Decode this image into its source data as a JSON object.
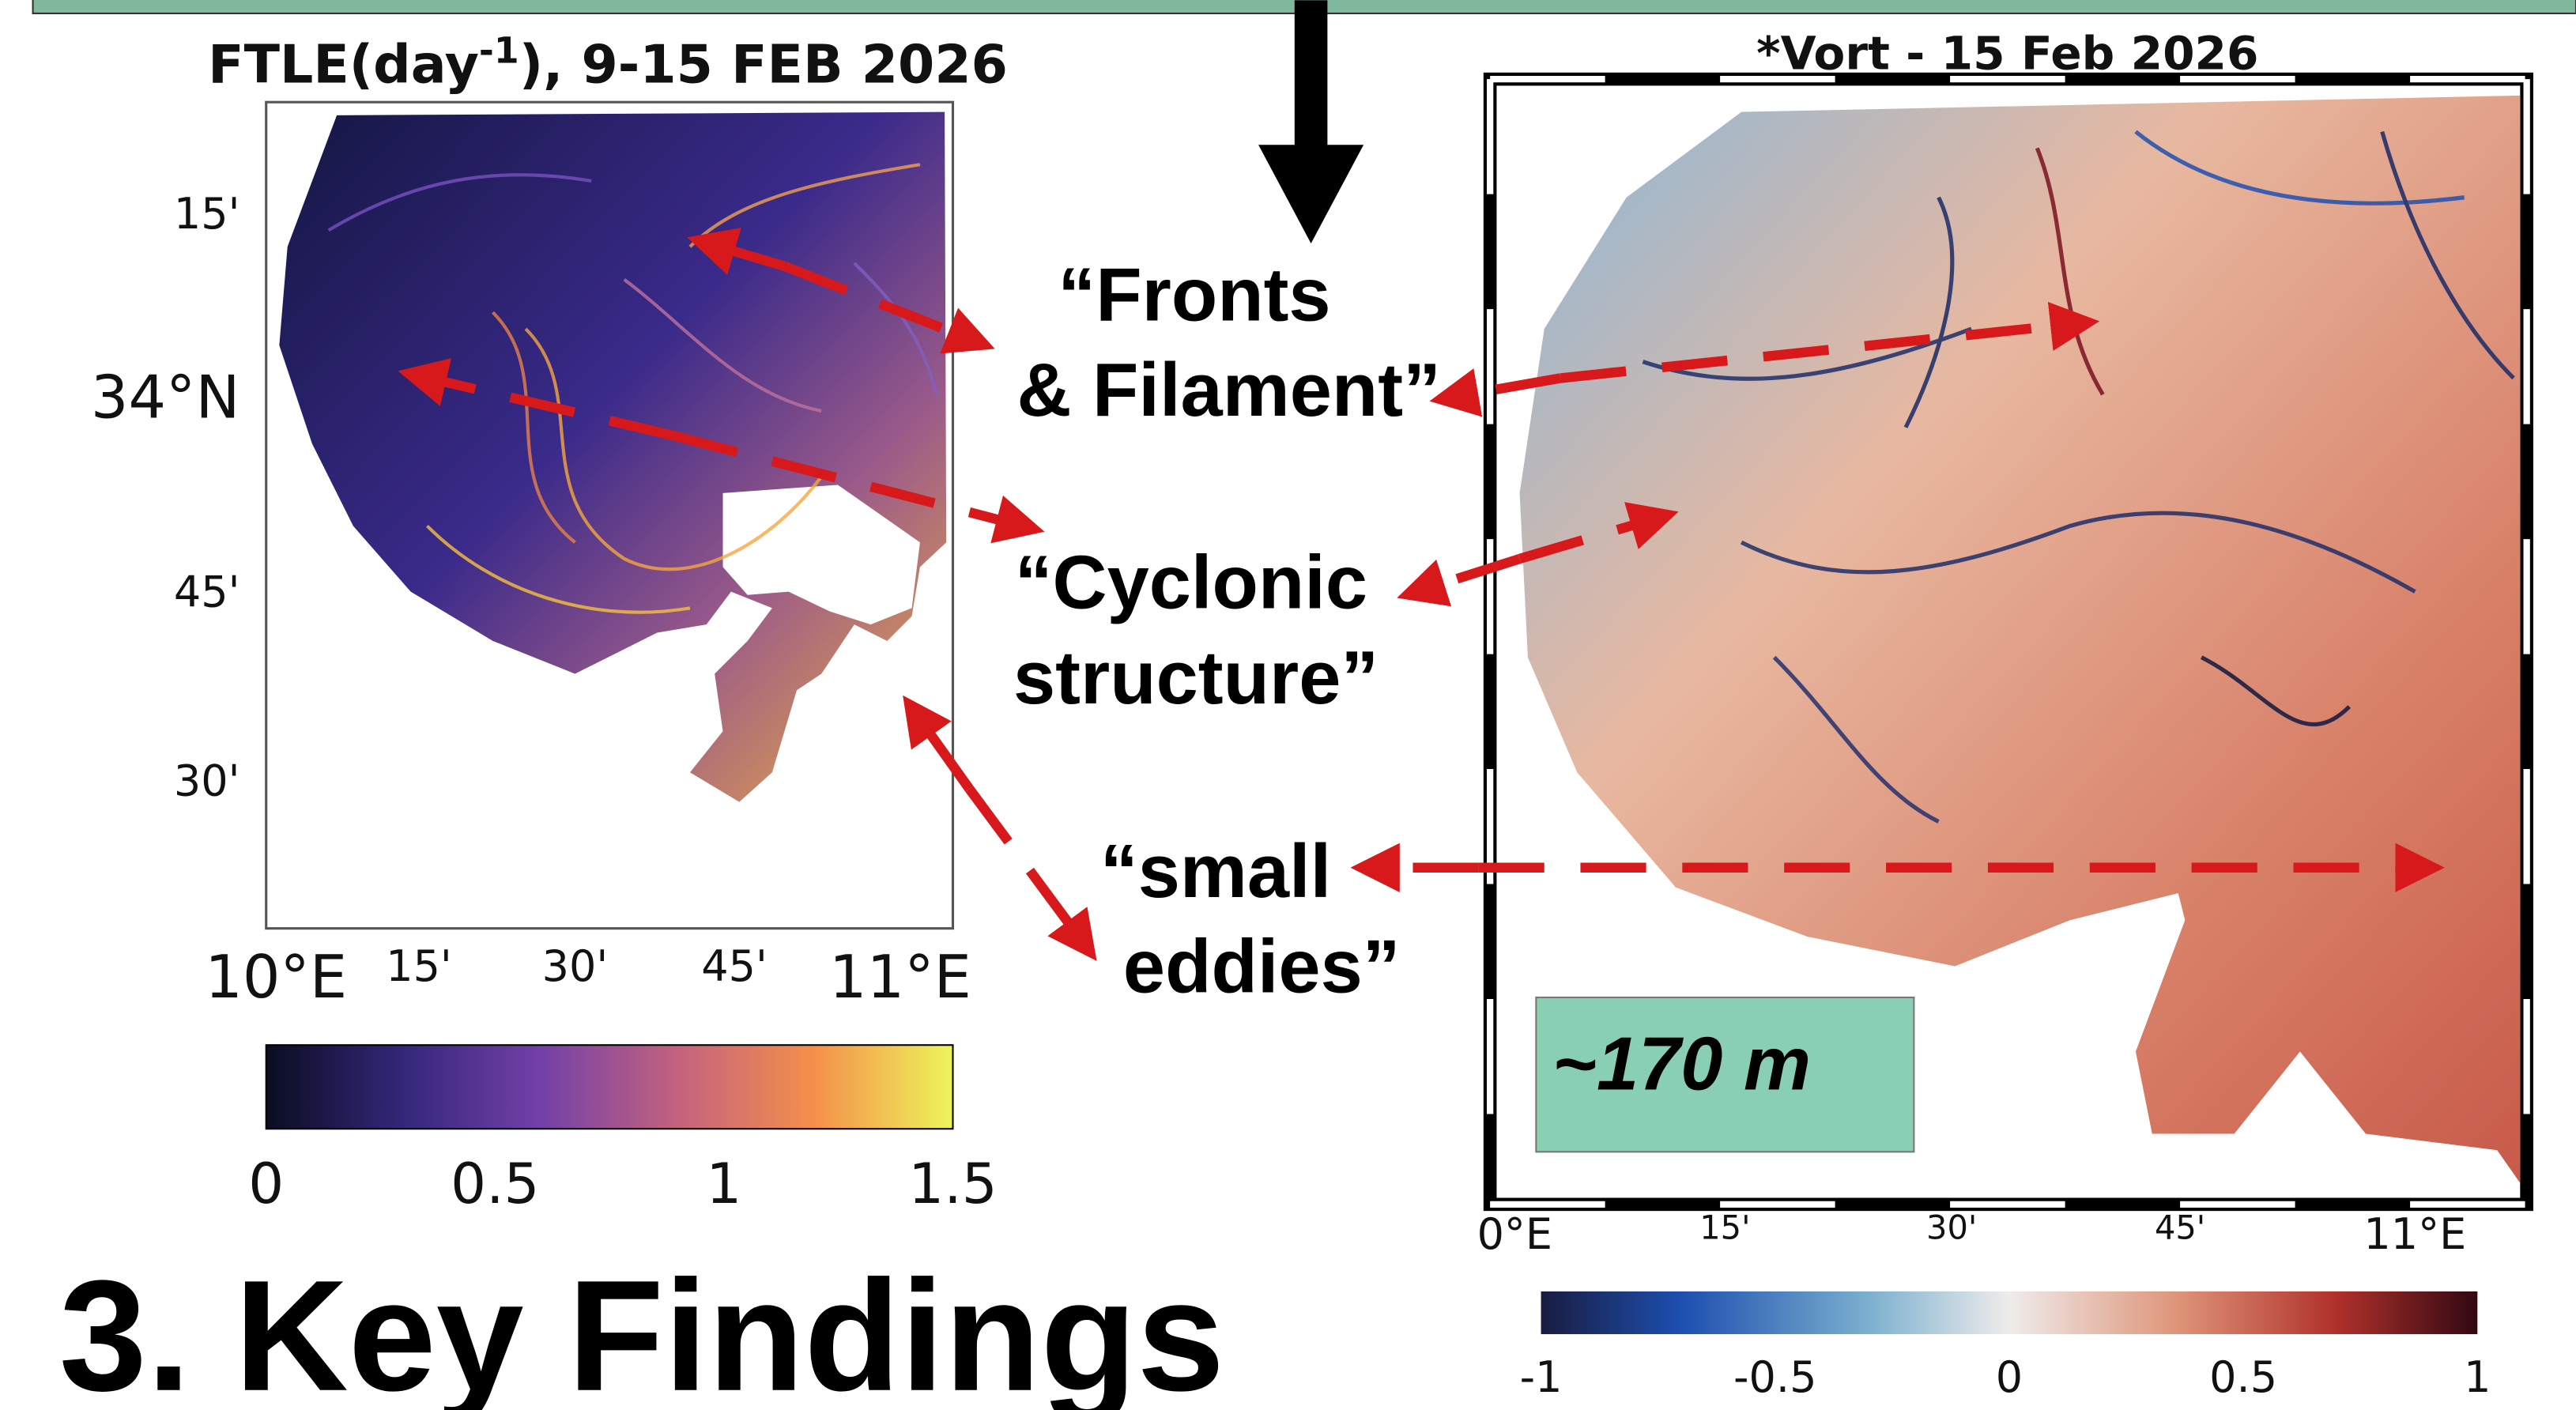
{
  "left_panel": {
    "title": {
      "prefix": "FTLE(day",
      "superscript": "-1",
      "suffix": "), 9-15 FEB 2026"
    },
    "y_labels": [
      "15'",
      "34°N",
      "45'",
      "30'"
    ],
    "x_labels": [
      "10°E",
      "15'",
      "30'",
      "45'",
      "11°E"
    ],
    "colorbar_ticks": [
      0,
      0.5,
      1,
      1.5
    ]
  },
  "right_panel": {
    "title": "*Vort - 15 Feb 2026",
    "x_labels": [
      "0°E",
      "15'",
      "30'",
      "45'",
      "11°E"
    ],
    "colorbar_ticks": [
      -1,
      -0.5,
      0,
      0.5,
      1
    ],
    "resolution": "~170 m"
  },
  "annotations": {
    "fronts": [
      "“Fronts",
      "& Filament”"
    ],
    "cyclonic": [
      "“Cyclonic",
      "structure”"
    ],
    "eddies": [
      "“small",
      "eddies”"
    ]
  },
  "heading": "3. Key Findings"
}
